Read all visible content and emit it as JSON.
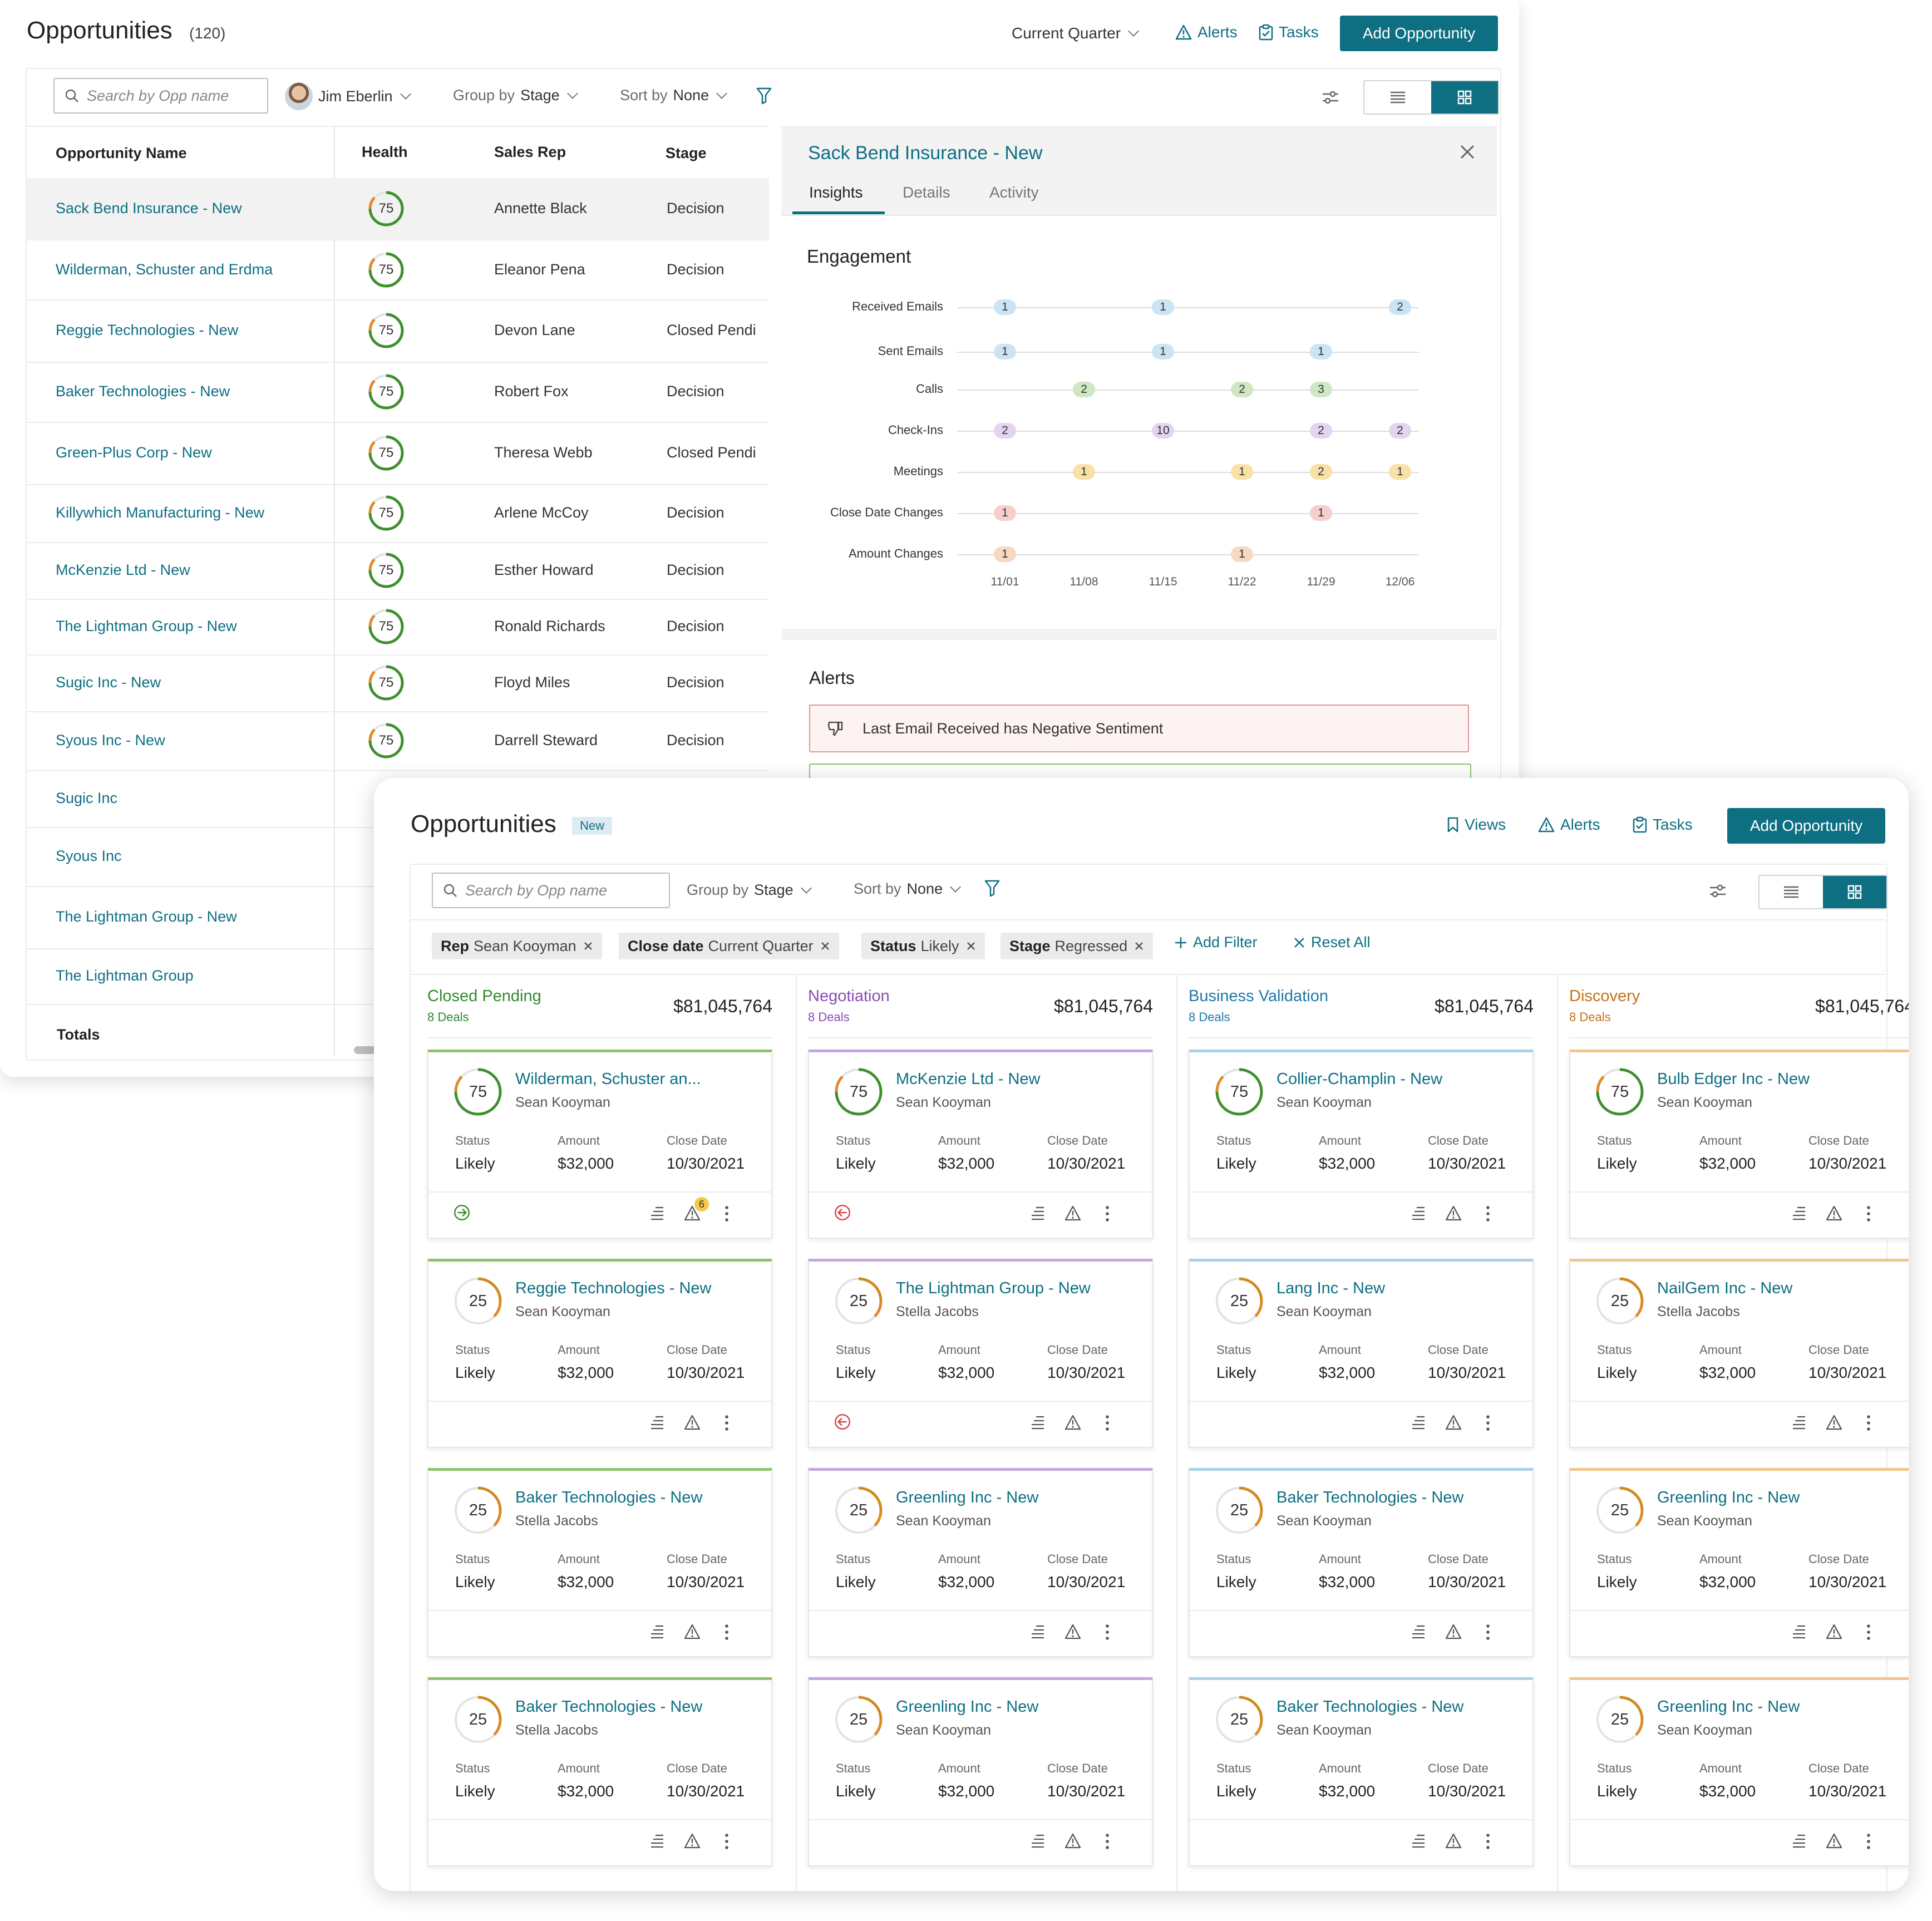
{
  "list_view": {
    "title": "Opportunities",
    "count": "(120)",
    "quarter_filter": "Current Quarter",
    "alerts_label": "Alerts",
    "tasks_label": "Tasks",
    "add_label": "Add Opportunity",
    "search_placeholder": "Search by Opp name",
    "user_name": "Jim Eberlin",
    "group_by_label": "Group by",
    "group_by_value": "Stage",
    "sort_by_label": "Sort by",
    "sort_by_value": "None",
    "columns": [
      "Opportunity Name",
      "Health",
      "Sales Rep",
      "Stage"
    ],
    "totals_label": "Totals",
    "rows": [
      {
        "name": "Sack Bend Insurance - New",
        "health": "75",
        "rep": "Annette Black",
        "stage": "Decision"
      },
      {
        "name": "Wilderman, Schuster and Erdma",
        "health": "75",
        "rep": "Eleanor Pena",
        "stage": "Decision"
      },
      {
        "name": "Reggie Technologies - New",
        "health": "75",
        "rep": "Devon Lane",
        "stage": "Closed Pendi"
      },
      {
        "name": "Baker Technologies - New",
        "health": "75",
        "rep": "Robert Fox",
        "stage": "Decision"
      },
      {
        "name": "Green-Plus Corp - New",
        "health": "75",
        "rep": "Theresa Webb",
        "stage": "Closed Pendi"
      },
      {
        "name": "Killywhich Manufacturing - New",
        "health": "75",
        "rep": "Arlene McCoy",
        "stage": "Decision"
      },
      {
        "name": "McKenzie Ltd - New",
        "health": "75",
        "rep": "Esther Howard",
        "stage": "Decision"
      },
      {
        "name": "The Lightman Group - New",
        "health": "75",
        "rep": "Ronald Richards",
        "stage": "Decision"
      },
      {
        "name": "Sugic Inc - New",
        "health": "75",
        "rep": "Floyd Miles",
        "stage": "Decision"
      },
      {
        "name": "Syous Inc - New",
        "health": "75",
        "rep": "Darrell Steward",
        "stage": "Decision"
      },
      {
        "name": "Sugic Inc",
        "health": "",
        "rep": "",
        "stage": ""
      },
      {
        "name": "Syous Inc",
        "health": "",
        "rep": "",
        "stage": ""
      },
      {
        "name": "The Lightman Group - New",
        "health": "",
        "rep": "",
        "stage": ""
      },
      {
        "name": "The Lightman Group",
        "health": "",
        "rep": "",
        "stage": ""
      }
    ]
  },
  "detail_panel": {
    "title": "Sack Bend Insurance - New",
    "tabs": [
      "Insights",
      "Details",
      "Activity"
    ],
    "engagement_heading": "Engagement",
    "alerts_heading": "Alerts",
    "alert_text": "Last Email Received has Negative Sentiment"
  },
  "chart_data": {
    "type": "scatter",
    "title": "Engagement",
    "x_ticks": [
      "11/01",
      "11/08",
      "11/15",
      "11/22",
      "11/29",
      "12/06"
    ],
    "rows": [
      {
        "name": "Received Emails",
        "color": "#cbe4f4",
        "points": [
          {
            "x": "11/01",
            "count": 1
          },
          {
            "x": "11/15",
            "count": 1
          },
          {
            "x": "12/06",
            "count": 2
          }
        ]
      },
      {
        "name": "Sent Emails",
        "color": "#cbe4f4",
        "points": [
          {
            "x": "11/01",
            "count": 1
          },
          {
            "x": "11/15",
            "count": 1
          },
          {
            "x": "11/29",
            "count": 1
          }
        ]
      },
      {
        "name": "Calls",
        "color": "#cfe8c3",
        "points": [
          {
            "x": "11/08",
            "count": 2
          },
          {
            "x": "11/22",
            "count": 2
          },
          {
            "x": "11/29",
            "count": 3
          }
        ]
      },
      {
        "name": "Check-Ins",
        "color": "#e3d5f2",
        "points": [
          {
            "x": "11/01",
            "count": 2
          },
          {
            "x": "11/15",
            "count": 10
          },
          {
            "x": "11/29",
            "count": 2
          },
          {
            "x": "12/06",
            "count": 2
          }
        ]
      },
      {
        "name": "Meetings",
        "color": "#f8e0a6",
        "points": [
          {
            "x": "11/08",
            "count": 1
          },
          {
            "x": "11/22",
            "count": 1
          },
          {
            "x": "11/29",
            "count": 2
          },
          {
            "x": "12/06",
            "count": 1
          }
        ]
      },
      {
        "name": "Close Date Changes",
        "color": "#f6cfcd",
        "points": [
          {
            "x": "11/01",
            "count": 1
          },
          {
            "x": "11/29",
            "count": 1
          }
        ]
      },
      {
        "name": "Amount Changes",
        "color": "#f9d8c2",
        "points": [
          {
            "x": "11/01",
            "count": 1
          },
          {
            "x": "11/22",
            "count": 1
          }
        ]
      }
    ]
  },
  "board_view": {
    "title": "Opportunities",
    "badge": "New",
    "views_label": "Views",
    "alerts_label": "Alerts",
    "tasks_label": "Tasks",
    "add_label": "Add Opportunity",
    "search_placeholder": "Search by Opp name",
    "group_by_label": "Group by",
    "group_by_value": "Stage",
    "sort_by_label": "Sort by",
    "sort_by_value": "None",
    "chips": [
      {
        "key": "Rep",
        "value": "Sean Kooyman"
      },
      {
        "key": "Close date",
        "value": "Current Quarter"
      },
      {
        "key": "Status",
        "value": "Likely"
      },
      {
        "key": "Stage",
        "value": "Regressed"
      }
    ],
    "add_filter_label": "Add Filter",
    "reset_label": "Reset All",
    "card_labels": {
      "status": "Status",
      "amount": "Amount",
      "close": "Close Date"
    },
    "columns": [
      {
        "name": "Closed Pending",
        "deals": "8 Deals",
        "total": "$81,045,764",
        "color": "#2f8a2f",
        "bar": "#8cc46c",
        "cards": [
          {
            "title": "Wilderman, Schuster an...",
            "rep": "Sean Kooyman",
            "score": "75",
            "status": "Likely",
            "amount": "$32,000",
            "close": "10/30/2021",
            "badge": "6",
            "arrow": "forward"
          },
          {
            "title": "Reggie Technologies - New",
            "rep": "Sean Kooyman",
            "score": "25",
            "status": "Likely",
            "amount": "$32,000",
            "close": "10/30/2021",
            "badge": "",
            "arrow": ""
          },
          {
            "title": "Baker Technologies - New",
            "rep": "Stella Jacobs",
            "score": "25",
            "status": "Likely",
            "amount": "$32,000",
            "close": "10/30/2021",
            "badge": "",
            "arrow": ""
          },
          {
            "title": "Baker Technologies - New",
            "rep": "Stella Jacobs",
            "score": "25",
            "status": "Likely",
            "amount": "$32,000",
            "close": "10/30/2021",
            "badge": "",
            "arrow": ""
          }
        ]
      },
      {
        "name": "Negotiation",
        "deals": "8 Deals",
        "total": "$81,045,764",
        "color": "#8a4bb8",
        "bar": "#c5a5df",
        "cards": [
          {
            "title": "McKenzie Ltd - New",
            "rep": "Sean Kooyman",
            "score": "75",
            "status": "Likely",
            "amount": "$32,000",
            "close": "10/30/2021",
            "badge": "",
            "arrow": "back"
          },
          {
            "title": "The Lightman Group - New",
            "rep": "Stella Jacobs",
            "score": "25",
            "status": "Likely",
            "amount": "$32,000",
            "close": "10/30/2021",
            "badge": "",
            "arrow": "back"
          },
          {
            "title": "Greenling Inc - New",
            "rep": "Sean Kooyman",
            "score": "25",
            "status": "Likely",
            "amount": "$32,000",
            "close": "10/30/2021",
            "badge": "",
            "arrow": ""
          },
          {
            "title": "Greenling Inc - New",
            "rep": "Sean Kooyman",
            "score": "25",
            "status": "Likely",
            "amount": "$32,000",
            "close": "10/30/2021",
            "badge": "",
            "arrow": ""
          }
        ]
      },
      {
        "name": "Business Validation",
        "deals": "8 Deals",
        "total": "$81,045,764",
        "color": "#1f78a8",
        "bar": "#a9d2ea",
        "cards": [
          {
            "title": "Collier-Champlin - New",
            "rep": "Sean Kooyman",
            "score": "75",
            "status": "Likely",
            "amount": "$32,000",
            "close": "10/30/2021",
            "badge": "",
            "arrow": ""
          },
          {
            "title": "Lang Inc - New",
            "rep": "Sean Kooyman",
            "score": "25",
            "status": "Likely",
            "amount": "$32,000",
            "close": "10/30/2021",
            "badge": "",
            "arrow": ""
          },
          {
            "title": "Baker Technologies - New",
            "rep": "Sean Kooyman",
            "score": "25",
            "status": "Likely",
            "amount": "$32,000",
            "close": "10/30/2021",
            "badge": "",
            "arrow": ""
          },
          {
            "title": "Baker Technologies - New",
            "rep": "Sean Kooyman",
            "score": "25",
            "status": "Likely",
            "amount": "$32,000",
            "close": "10/30/2021",
            "badge": "",
            "arrow": ""
          }
        ]
      },
      {
        "name": "Discovery",
        "deals": "8 Deals",
        "total": "$81,045,764",
        "color": "#c7711b",
        "bar": "#f2c58a",
        "cards": [
          {
            "title": "Bulb Edger Inc - New",
            "rep": "Sean Kooyman",
            "score": "75",
            "status": "Likely",
            "amount": "$32,000",
            "close": "10/30/2021",
            "badge": "",
            "arrow": ""
          },
          {
            "title": "NailGem Inc - New",
            "rep": "Stella Jacobs",
            "score": "25",
            "status": "Likely",
            "amount": "$32,000",
            "close": "10/30/2021",
            "badge": "",
            "arrow": ""
          },
          {
            "title": "Greenling Inc - New",
            "rep": "Sean Kooyman",
            "score": "25",
            "status": "Likely",
            "amount": "$32,000",
            "close": "10/30/2021",
            "badge": "",
            "arrow": ""
          },
          {
            "title": "Greenling Inc - New",
            "rep": "Sean Kooyman",
            "score": "25",
            "status": "Likely",
            "amount": "$32,000",
            "close": "10/30/2021",
            "badge": "",
            "arrow": ""
          }
        ]
      }
    ]
  }
}
